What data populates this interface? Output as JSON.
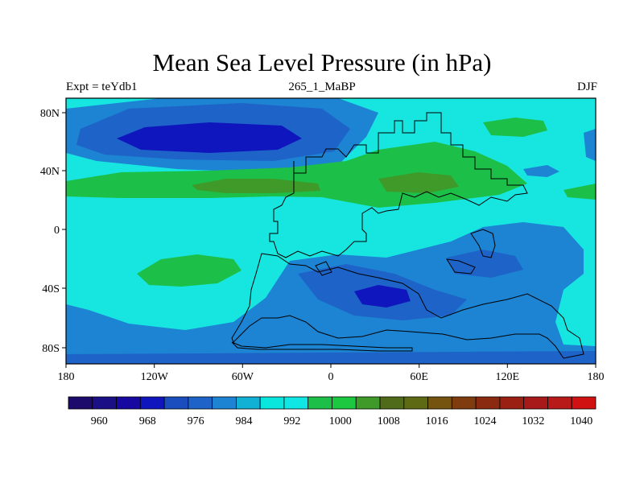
{
  "title": "Mean Sea Level Pressure (in hPa)",
  "subtitle_left": "Expt = teYdb1",
  "subtitle_center": "265_1_MaBP",
  "subtitle_right": "DJF",
  "x_ticks": [
    "180",
    "120W",
    "60W",
    "0",
    "60E",
    "120E",
    "180"
  ],
  "y_ticks": [
    "80N",
    "40N",
    "0",
    "40S",
    "80S"
  ],
  "colorbar": {
    "labels": [
      "960",
      "968",
      "976",
      "984",
      "992",
      "1000",
      "1008",
      "1016",
      "1024",
      "1032",
      "1040"
    ],
    "colors": [
      "#1d0b6b",
      "#1a0f84",
      "#1608a1",
      "#1016bd",
      "#1a4dbe",
      "#1e63c8",
      "#1d83d3",
      "#11b1d6",
      "#08e6de",
      "#10e6e4",
      "#1cbf48",
      "#1cc840",
      "#3f9a2a",
      "#506b1a",
      "#5f6a14",
      "#74540f",
      "#7f3d0f",
      "#8a2a10",
      "#9a2014",
      "#a81a1a",
      "#b81a1a",
      "#d01212"
    ]
  },
  "field_colors": {
    "background": "#17e6e0",
    "low1": "#1d83d3",
    "low2": "#1e63c8",
    "low3": "#1016bd",
    "high1": "#1cbf48",
    "high2": "#3f9a2a"
  }
}
